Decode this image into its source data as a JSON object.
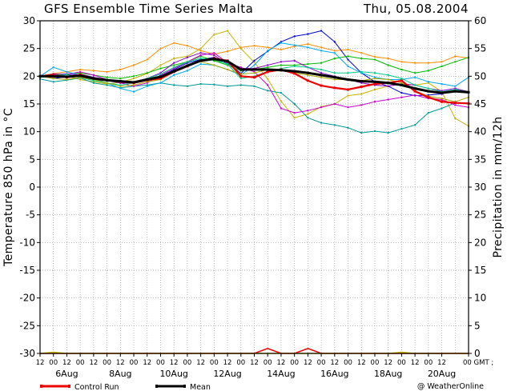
{
  "chart_data": {
    "type": "line",
    "title": "GFS Ensemble Time Series Malta",
    "date_text": "Thu, 05.08.2004",
    "ylabel_left": "Temperature 850 hPa in °C",
    "ylabel_right": "Precipitation in mm/12h",
    "ylim_left": [
      -30,
      30
    ],
    "ylim_right": [
      0,
      60
    ],
    "yticks_left": [
      "30",
      "25",
      "20",
      "15",
      "10",
      "5",
      "0",
      "-5",
      "-10",
      "-15",
      "-20",
      "-25",
      "-30"
    ],
    "yticks_right": [
      "60",
      "55",
      "50",
      "45",
      "40",
      "35",
      "30",
      "25",
      "20",
      "15",
      "10",
      "5",
      "0"
    ],
    "hour_labels": [
      "12",
      "00",
      "12",
      "00",
      "12",
      "00",
      "12",
      "00",
      "12",
      "00",
      "12",
      "00",
      "12",
      "00",
      "12",
      "00",
      "12",
      "00",
      "12",
      "00",
      "12",
      "00",
      "12",
      "00",
      "12",
      "00",
      "12",
      "00",
      "12",
      "00",
      "12"
    ],
    "gmt_label": "00 GMT ;",
    "date_labels": [
      "6Aug",
      "8Aug",
      "10Aug",
      "12Aug",
      "14Aug",
      "16Aug",
      "18Aug",
      "20Aug"
    ],
    "legend": [
      {
        "label": "Control Run",
        "color": "#ee0000"
      },
      {
        "label": "Mean",
        "color": "#000000"
      }
    ],
    "copyright": "@ WeatherOnline",
    "grid": true,
    "x_steps": 32,
    "series": [
      {
        "color": "#ee0000",
        "width": 2.2,
        "values": [
          20,
          20.2,
          19.8,
          20.3,
          19.6,
          19.3,
          19,
          18.8,
          19.3,
          19.6,
          20.8,
          21.8,
          22.8,
          23.2,
          22.8,
          20,
          19.8,
          20.8,
          21.2,
          20.5,
          19.2,
          18.3,
          17.9,
          17.6,
          18.1,
          18.6,
          18.8,
          19.2,
          17.3,
          16.2,
          15.4,
          15.2,
          15.1
        ]
      },
      {
        "color": "#000000",
        "width": 3,
        "values": [
          20,
          20,
          19.9,
          20.1,
          19.6,
          19.3,
          19.1,
          18.9,
          19.4,
          19.9,
          20.9,
          21.9,
          22.8,
          23.1,
          22.7,
          21.2,
          21.2,
          21.2,
          21.1,
          20.9,
          20.6,
          20.2,
          19.8,
          19.4,
          19.1,
          19,
          18.8,
          18.4,
          17.8,
          17.3,
          17,
          17.3,
          17.1
        ]
      },
      {
        "color": "#ff8c00",
        "width": 1,
        "values": [
          20,
          20.5,
          20.8,
          21.2,
          21,
          20.8,
          21.2,
          22,
          23,
          25,
          26,
          25.5,
          24.6,
          24,
          24.5,
          25.2,
          25.5,
          25.2,
          24.8,
          25.4,
          25.8,
          25.2,
          24.6,
          24.8,
          24.2,
          23.5,
          23.2,
          22.6,
          22.4,
          22.4,
          22.6,
          23.6,
          23.3
        ]
      },
      {
        "color": "#c8b400",
        "width": 1,
        "values": [
          20,
          20.2,
          20,
          19.4,
          19,
          18.6,
          18.9,
          19.6,
          20.5,
          22,
          23.2,
          23.6,
          25,
          27.5,
          28.2,
          25,
          22.5,
          19.5,
          15.5,
          12.5,
          13.2,
          14.5,
          15,
          16.5,
          16.8,
          17.6,
          18.2,
          18.6,
          18.4,
          18.8,
          17.2,
          12.4,
          11
        ]
      },
      {
        "color": "#0000cc",
        "width": 1,
        "values": [
          20,
          19.6,
          19.9,
          20.4,
          19.8,
          19.2,
          18.8,
          18.8,
          19.4,
          20,
          21.2,
          22.4,
          23,
          23.4,
          22.5,
          20.5,
          22.8,
          24.5,
          26.2,
          27.2,
          27.6,
          28.2,
          26.2,
          23,
          20.6,
          19,
          18.2,
          17,
          16.5,
          16.6,
          16.8,
          17.4,
          17.2
        ]
      },
      {
        "color": "#00bb00",
        "width": 1,
        "values": [
          20,
          20.2,
          20.4,
          20.6,
          20.2,
          19.8,
          19.6,
          20,
          20.6,
          21.4,
          22,
          22.6,
          23.6,
          22.8,
          22,
          21,
          21.2,
          21.6,
          22,
          22,
          22.2,
          22.4,
          23.2,
          23.6,
          23.2,
          23,
          22,
          21.2,
          20.6,
          21,
          21.8,
          22.6,
          23.4
        ]
      },
      {
        "color": "#009999",
        "width": 1,
        "values": [
          19.5,
          19,
          19.3,
          19.7,
          18.8,
          18.4,
          17.9,
          18.2,
          18.4,
          18.8,
          18.4,
          18.2,
          18.6,
          18.5,
          18.2,
          18.4,
          18.2,
          17.4,
          17,
          15,
          12.5,
          11.6,
          11.2,
          10.7,
          9.8,
          10.1,
          9.8,
          10.5,
          11.2,
          13.4,
          14.2,
          15.2,
          15.1
        ]
      },
      {
        "color": "#cc00cc",
        "width": 1,
        "values": [
          20,
          19.8,
          20.3,
          20.8,
          20.2,
          19.4,
          18.8,
          18.2,
          18.8,
          20.2,
          21.4,
          22.6,
          23.8,
          24.2,
          22.4,
          21.6,
          20.8,
          18.4,
          14.2,
          13.4,
          13.8,
          14.4,
          15,
          14.4,
          14.8,
          15.4,
          15.8,
          16.2,
          16.6,
          16,
          15.8,
          14.8,
          14.4
        ]
      },
      {
        "color": "#00aaee",
        "width": 1,
        "values": [
          20,
          21.6,
          20.8,
          20.2,
          19.6,
          18.8,
          17.8,
          17.2,
          18.2,
          18.8,
          20.2,
          21,
          22.2,
          22,
          21.2,
          20.2,
          22,
          24.6,
          26,
          25.6,
          25.2,
          24.6,
          24.2,
          21.8,
          20.6,
          19.8,
          19.4,
          19.4,
          19.8,
          19,
          18.6,
          18.2,
          19.8
        ]
      },
      {
        "color": "#8800cc",
        "width": 1,
        "values": [
          20,
          20.4,
          20.4,
          20.2,
          19.8,
          19.4,
          19.2,
          19,
          19.6,
          20.6,
          22.4,
          23.4,
          24.2,
          23.8,
          22.2,
          21.4,
          21.4,
          22,
          22.6,
          22.8,
          21.6,
          20.6,
          20,
          19.4,
          18.8,
          18.4,
          18.2,
          18.6,
          18.4,
          17.8,
          17.4,
          17.8,
          17.2
        ]
      },
      {
        "color": "#00cc88",
        "width": 1,
        "values": [
          19.8,
          20,
          20.3,
          19.8,
          19.2,
          18.8,
          18.4,
          18.8,
          19.6,
          20.4,
          21.6,
          22.6,
          23.2,
          23,
          22.2,
          19.6,
          20,
          20.8,
          21.4,
          21.8,
          21.6,
          21.2,
          20.6,
          20.6,
          20.8,
          20.6,
          20.2,
          19.6,
          18.4,
          17.8,
          17.2,
          17.6,
          17.2
        ]
      },
      {
        "color": "#aaaa00",
        "width": 1,
        "values": [
          20,
          19.6,
          19.4,
          19.8,
          19.4,
          18.8,
          18.2,
          18.4,
          19,
          19.4,
          20.8,
          22,
          22.6,
          22,
          21.2,
          20.4,
          20.6,
          21.2,
          21,
          20.6,
          20.2,
          19.8,
          19.4,
          19.4,
          19.2,
          19.6,
          19.4,
          18.8,
          17.4,
          16.4,
          16,
          15.4,
          16.2
        ]
      }
    ],
    "precip": [
      {
        "color": "#ee0000",
        "values": [
          0,
          0,
          0,
          0,
          0,
          0,
          0,
          0,
          0,
          0,
          0,
          0,
          0,
          0,
          0,
          0,
          0,
          0.9,
          0,
          0,
          0.9,
          0,
          0,
          0,
          0,
          0,
          0,
          0,
          0,
          0,
          0,
          0,
          0
        ]
      },
      {
        "color": "#c8b400",
        "values": [
          0,
          0.2,
          0,
          0,
          0,
          0,
          0,
          0,
          0,
          0,
          0,
          0,
          0,
          0,
          0,
          0,
          0,
          0,
          0,
          0,
          0,
          0,
          0,
          0,
          0,
          0,
          0,
          0.2,
          0,
          0,
          0,
          0,
          0
        ]
      }
    ]
  }
}
